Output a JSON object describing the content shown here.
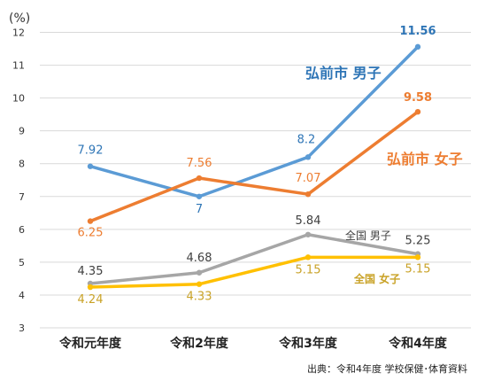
{
  "chart_data": {
    "type": "line",
    "unit_label": "(%)",
    "y_ticks": [
      "3",
      "4",
      "5",
      "6",
      "7",
      "8",
      "9",
      "10",
      "11",
      "12"
    ],
    "ylim": [
      3,
      12.5
    ],
    "categories": [
      "令和元年度",
      "令和2年度",
      "令和3年度",
      "令和4年度"
    ],
    "grid": "horizontal",
    "series": [
      {
        "name": "弘前市 男子",
        "color": "#5b9bd5",
        "label_color": "#2e75b6",
        "values": [
          7.92,
          7.0,
          8.2,
          11.56
        ],
        "labels": [
          "7.92",
          "7",
          "8.2",
          "11.56"
        ]
      },
      {
        "name": "弘前市 女子",
        "color": "#ed7d31",
        "label_color": "#ed7d31",
        "values": [
          6.25,
          7.56,
          7.07,
          9.58
        ],
        "labels": [
          "6.25",
          "7.56",
          "7.07",
          "9.58"
        ]
      },
      {
        "name": "全国 男子",
        "color": "#a6a6a6",
        "label_color": "#404040",
        "values": [
          4.35,
          4.68,
          5.84,
          5.25
        ],
        "labels": [
          "4.35",
          "4.68",
          "5.84",
          "5.25"
        ]
      },
      {
        "name": "全国 女子",
        "color": "#ffc000",
        "label_color": "#c9a227",
        "values": [
          4.24,
          4.33,
          5.15,
          5.15
        ],
        "labels": [
          "4.24",
          "4.33",
          "5.15",
          "5.15"
        ]
      }
    ]
  },
  "source": "出典：令和4年度 学校保健･体育資料"
}
